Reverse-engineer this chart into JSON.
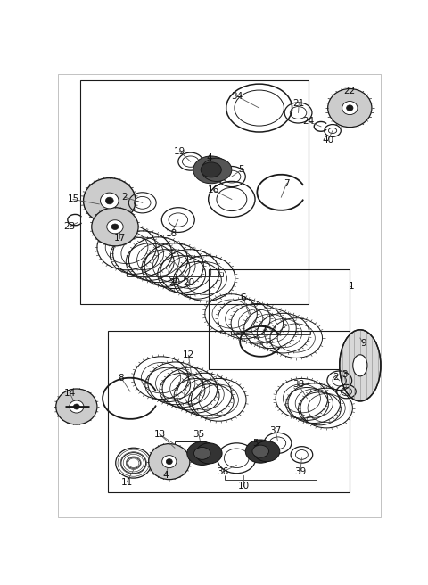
{
  "bg_color": "#ffffff",
  "line_color": "#1a1a1a",
  "gray_color": "#888888",
  "light_gray": "#cccccc",
  "dark_color": "#222222",
  "fig_width": 4.8,
  "fig_height": 6.56,
  "dpi": 100
}
